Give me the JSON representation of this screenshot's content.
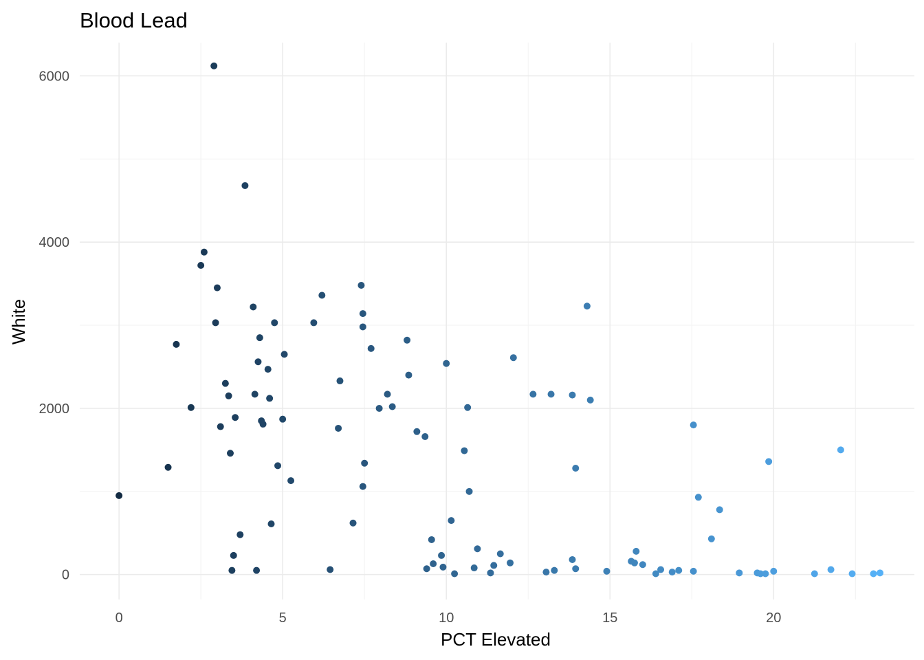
{
  "chart_data": {
    "type": "scatter",
    "title": "Blood Lead",
    "xlabel": "PCT Elevated",
    "ylabel": "White",
    "xlim": [
      -1.2,
      24.3
    ],
    "ylim": [
      -300,
      6400
    ],
    "x_ticks": [
      0,
      5,
      10,
      15,
      20
    ],
    "y_ticks": [
      0,
      2000,
      4000,
      6000
    ],
    "grid": true,
    "legend": "none",
    "color_low": "#132B43",
    "color_high": "#56B1F7",
    "color_by": "x",
    "points": [
      [
        0.0,
        950
      ],
      [
        1.5,
        1290
      ],
      [
        1.75,
        2770
      ],
      [
        2.2,
        2010
      ],
      [
        2.5,
        3720
      ],
      [
        2.6,
        3880
      ],
      [
        2.9,
        6120
      ],
      [
        2.95,
        3030
      ],
      [
        3.0,
        3450
      ],
      [
        3.1,
        1780
      ],
      [
        3.25,
        2300
      ],
      [
        3.35,
        2150
      ],
      [
        3.4,
        1460
      ],
      [
        3.45,
        50
      ],
      [
        3.5,
        230
      ],
      [
        3.55,
        1890
      ],
      [
        3.7,
        480
      ],
      [
        3.85,
        4680
      ],
      [
        4.1,
        3220
      ],
      [
        4.15,
        2170
      ],
      [
        4.2,
        50
      ],
      [
        4.25,
        2560
      ],
      [
        4.3,
        2850
      ],
      [
        4.35,
        1850
      ],
      [
        4.4,
        1810
      ],
      [
        4.55,
        2470
      ],
      [
        4.6,
        2120
      ],
      [
        4.65,
        610
      ],
      [
        4.75,
        3030
      ],
      [
        4.85,
        1310
      ],
      [
        5.0,
        1870
      ],
      [
        5.05,
        2650
      ],
      [
        5.25,
        1130
      ],
      [
        5.95,
        3030
      ],
      [
        6.2,
        3360
      ],
      [
        6.45,
        60
      ],
      [
        6.7,
        1760
      ],
      [
        6.75,
        2330
      ],
      [
        7.15,
        620
      ],
      [
        7.4,
        3480
      ],
      [
        7.45,
        3140
      ],
      [
        7.45,
        2980
      ],
      [
        7.45,
        1060
      ],
      [
        7.5,
        1340
      ],
      [
        7.7,
        2720
      ],
      [
        7.95,
        2000
      ],
      [
        8.2,
        2170
      ],
      [
        8.35,
        2020
      ],
      [
        8.8,
        2820
      ],
      [
        8.85,
        2400
      ],
      [
        9.1,
        1720
      ],
      [
        9.35,
        1660
      ],
      [
        9.4,
        70
      ],
      [
        9.55,
        420
      ],
      [
        9.6,
        130
      ],
      [
        9.85,
        230
      ],
      [
        9.9,
        90
      ],
      [
        10.0,
        2540
      ],
      [
        10.15,
        650
      ],
      [
        10.25,
        10
      ],
      [
        10.55,
        1490
      ],
      [
        10.65,
        2010
      ],
      [
        10.7,
        1000
      ],
      [
        10.85,
        80
      ],
      [
        10.95,
        310
      ],
      [
        11.35,
        20
      ],
      [
        11.45,
        110
      ],
      [
        11.65,
        250
      ],
      [
        11.95,
        140
      ],
      [
        12.05,
        2610
      ],
      [
        12.65,
        2170
      ],
      [
        13.05,
        30
      ],
      [
        13.2,
        2170
      ],
      [
        13.3,
        50
      ],
      [
        13.85,
        2160
      ],
      [
        13.85,
        180
      ],
      [
        13.95,
        70
      ],
      [
        13.95,
        1280
      ],
      [
        14.3,
        3230
      ],
      [
        14.4,
        2100
      ],
      [
        14.9,
        40
      ],
      [
        15.65,
        160
      ],
      [
        15.75,
        140
      ],
      [
        15.8,
        280
      ],
      [
        16.0,
        120
      ],
      [
        16.4,
        10
      ],
      [
        16.55,
        60
      ],
      [
        16.9,
        30
      ],
      [
        17.1,
        50
      ],
      [
        17.55,
        40
      ],
      [
        17.55,
        1800
      ],
      [
        17.7,
        930
      ],
      [
        18.1,
        430
      ],
      [
        18.35,
        780
      ],
      [
        18.95,
        20
      ],
      [
        19.5,
        20
      ],
      [
        19.6,
        10
      ],
      [
        19.75,
        10
      ],
      [
        19.85,
        1360
      ],
      [
        20.0,
        40
      ],
      [
        21.25,
        10
      ],
      [
        21.75,
        60
      ],
      [
        22.05,
        1500
      ],
      [
        22.4,
        10
      ],
      [
        23.05,
        10
      ],
      [
        23.25,
        20
      ]
    ]
  }
}
